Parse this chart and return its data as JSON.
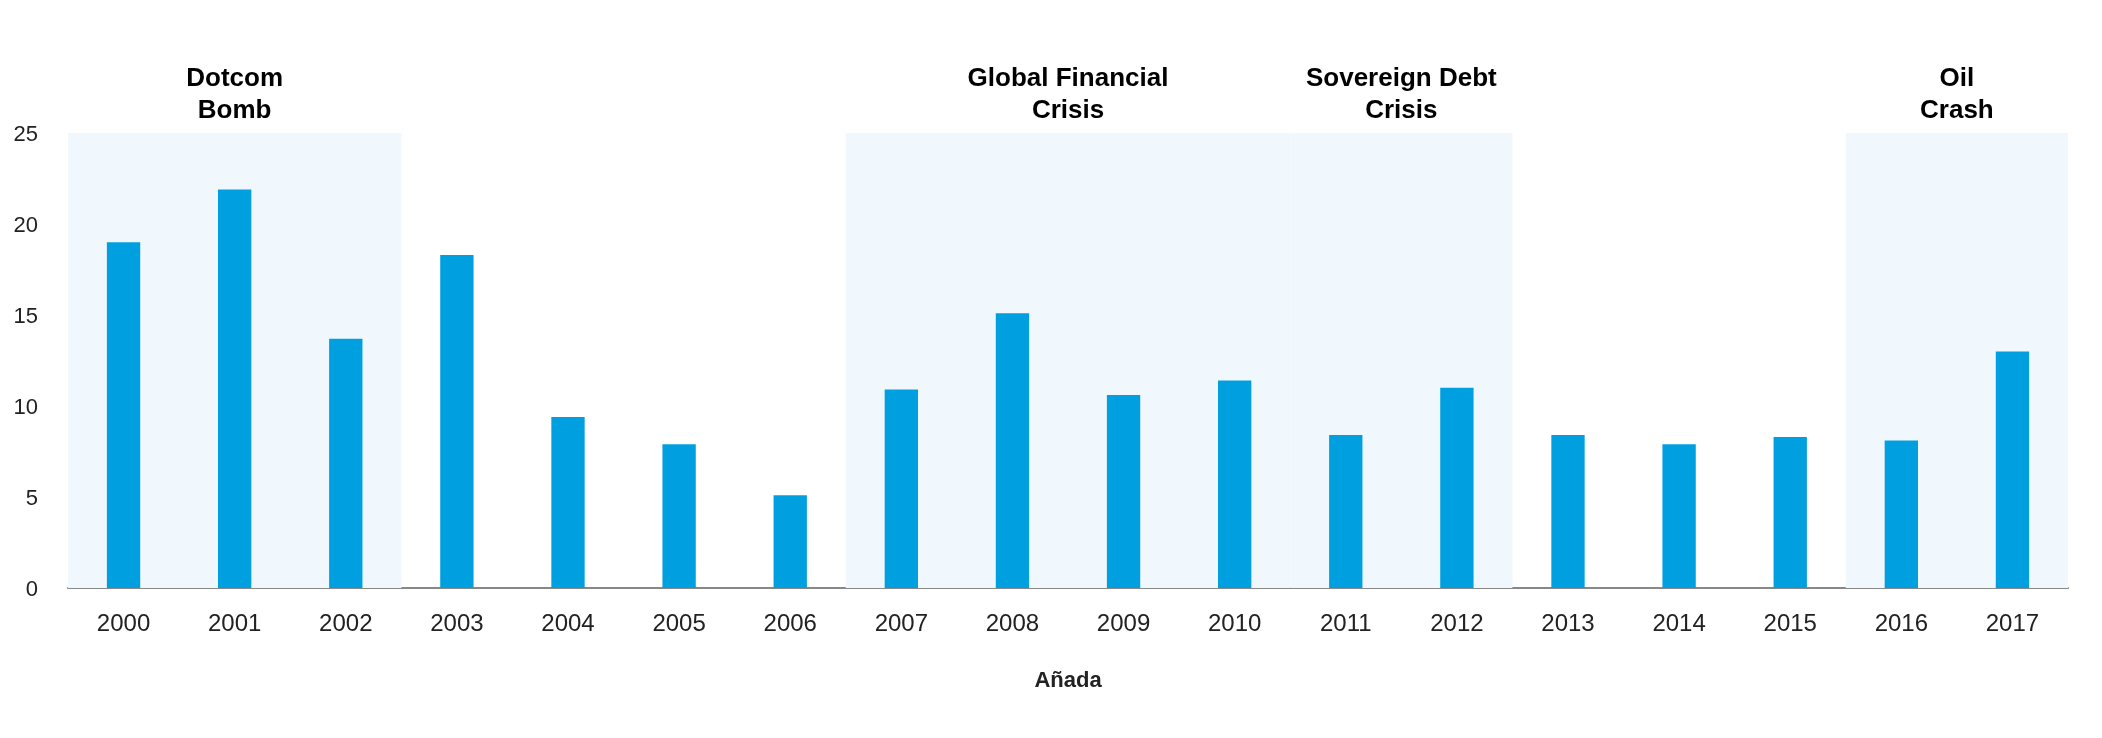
{
  "chart_data": {
    "type": "bar",
    "xlabel": "Añada",
    "categories": [
      "2000",
      "2001",
      "2002",
      "2003",
      "2004",
      "2005",
      "2006",
      "2007",
      "2008",
      "2009",
      "2010",
      "2011",
      "2012",
      "2013",
      "2014",
      "2015",
      "2016",
      "2017"
    ],
    "values": [
      19.0,
      21.9,
      13.7,
      18.3,
      9.4,
      7.9,
      5.1,
      10.9,
      15.1,
      10.6,
      11.4,
      8.4,
      11.0,
      8.4,
      7.9,
      8.3,
      8.1,
      13.0
    ],
    "color": "#00a0e0",
    "ylim": [
      0,
      25
    ],
    "yticks": [
      0,
      5,
      10,
      15,
      20,
      25
    ],
    "grid": false,
    "bands": [
      {
        "axis": "x",
        "from": "2000",
        "to": "2002",
        "label": "Dotcom\nBomb",
        "color": "#f0f8fe"
      },
      {
        "axis": "x",
        "from": "2007",
        "to": "2010",
        "label": "Global Financial\nCrisis",
        "color": "#f0f8fe"
      },
      {
        "axis": "x",
        "from": "2011",
        "to": "2012",
        "label": "Sovereign Debt\nCrisis",
        "color": "#f0f8fe"
      },
      {
        "axis": "x",
        "from": "2016",
        "to": "2017",
        "label": "Oil\nCrash",
        "color": "#f0f8fe"
      }
    ]
  }
}
